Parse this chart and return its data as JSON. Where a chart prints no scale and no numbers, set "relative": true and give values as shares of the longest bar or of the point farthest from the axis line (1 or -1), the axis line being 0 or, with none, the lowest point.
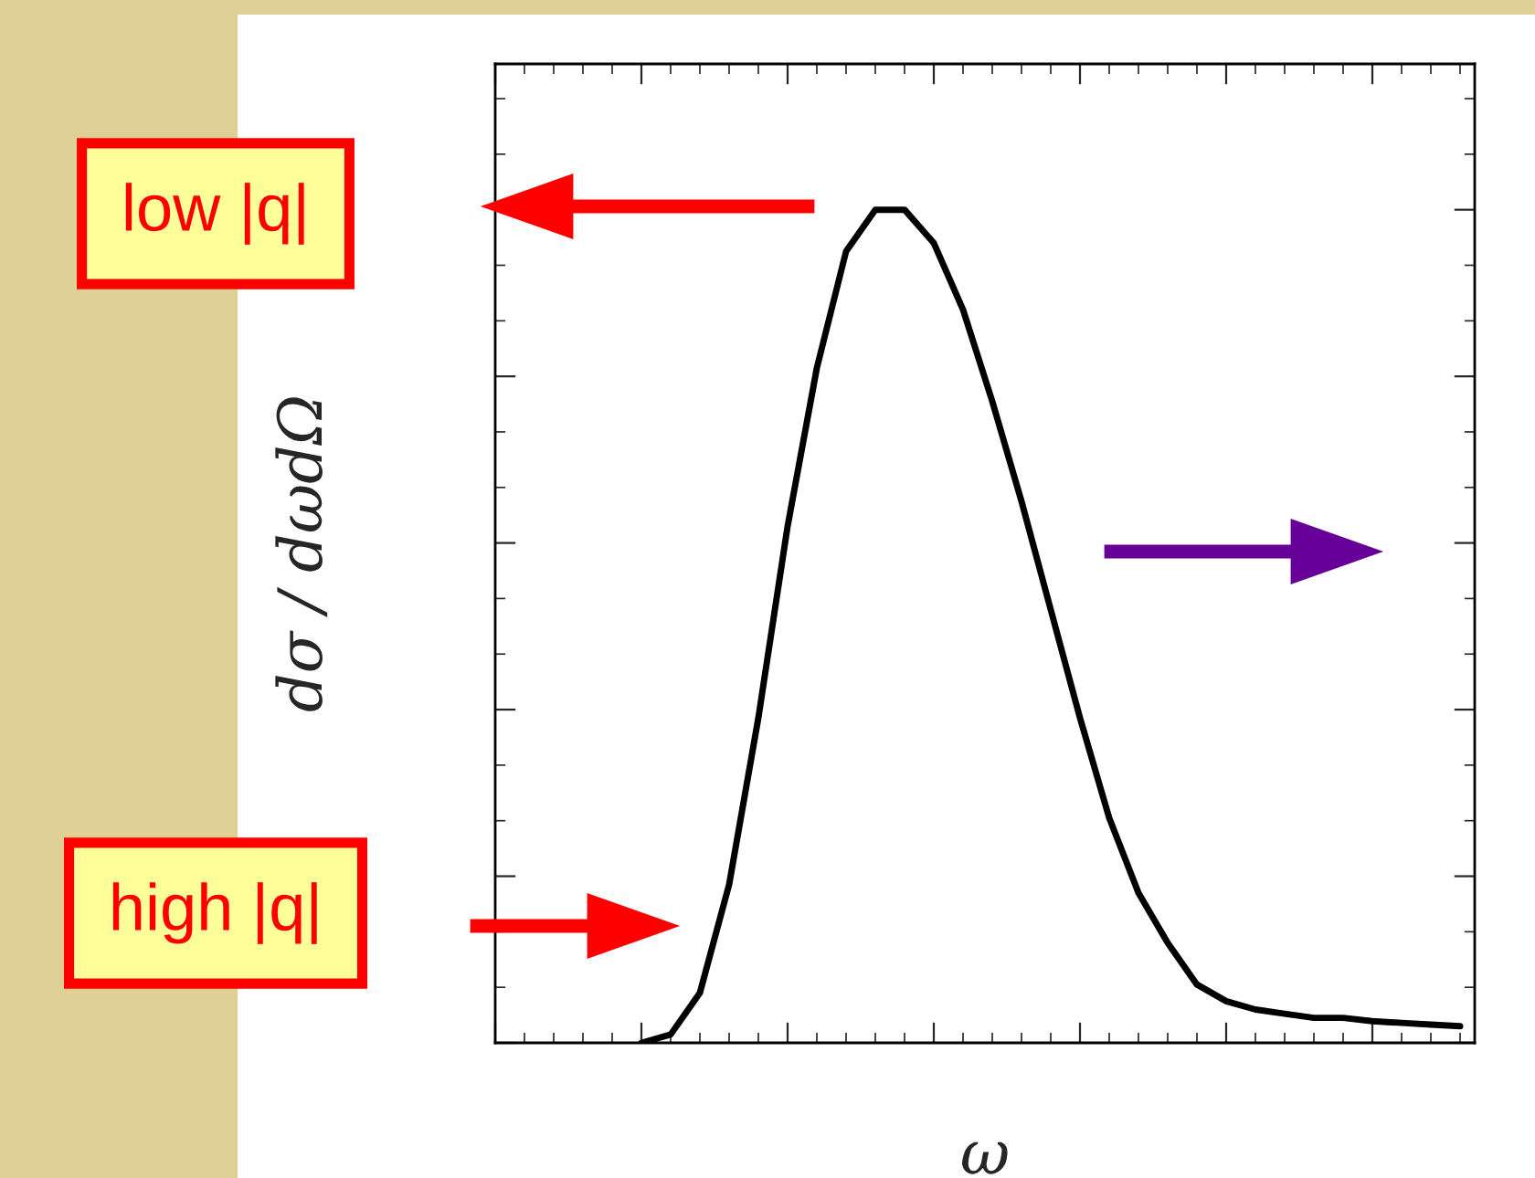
{
  "chart_data": {
    "type": "line",
    "relative": true,
    "xlabel": "ω",
    "ylabel": "dσ / dωdΩ",
    "tick_labels": false,
    "categories": [
      null,
      null,
      null,
      null,
      null,
      null,
      null,
      null,
      null,
      null,
      null,
      null,
      null,
      null,
      null,
      null,
      null,
      null,
      null,
      null,
      null,
      null,
      null,
      null,
      null,
      null,
      null,
      null,
      null,
      null,
      null,
      null,
      null,
      null
    ],
    "series": [
      {
        "color": "#000000",
        "values": [
          null,
          null,
          null,
          null,
          null,
          0.0,
          0.01,
          0.06,
          0.19,
          0.39,
          0.62,
          0.81,
          0.95,
          1.0,
          1.0,
          0.96,
          0.88,
          0.77,
          0.65,
          0.52,
          0.39,
          0.27,
          0.18,
          0.12,
          0.07,
          0.05,
          0.04,
          0.035,
          0.03,
          0.03,
          0.026,
          0.024,
          0.022,
          0.02
        ]
      }
    ],
    "annotations": [
      "low |q|",
      "high |q|"
    ]
  }
}
